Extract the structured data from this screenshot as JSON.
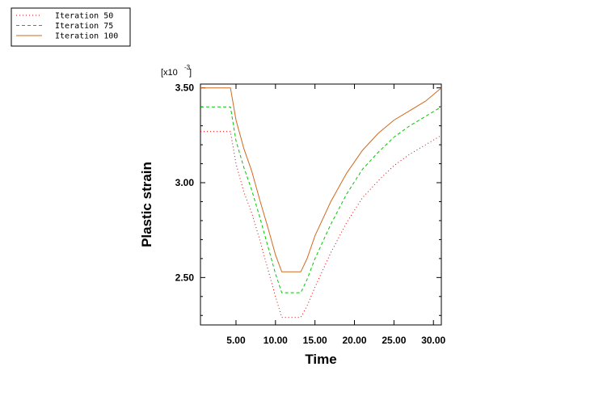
{
  "chart_data": {
    "type": "line",
    "title": "",
    "xlabel": "Time",
    "ylabel": "Plastic strain",
    "y_scale_label": "[x10",
    "y_scale_exponent": "-3",
    "y_scale_close": "]",
    "xlim": [
      0.5,
      31.0
    ],
    "ylim": [
      2.25,
      3.52
    ],
    "xticks": [
      5,
      10,
      15,
      20,
      25,
      30
    ],
    "xtick_labels": [
      "5.00",
      "10.00",
      "15.00",
      "20.00",
      "25.00",
      "30.00"
    ],
    "yticks": [
      2.5,
      3.0,
      3.5
    ],
    "ytick_labels": [
      "2.50",
      "3.00",
      "3.50"
    ],
    "grid": false,
    "legend_position": "top-left",
    "series": [
      {
        "name": "Iteration 50",
        "color": "#e00000",
        "dash": "1,3",
        "x": [
          0.5,
          4.3,
          5.0,
          6.0,
          7.0,
          8.0,
          9.0,
          10.0,
          10.8,
          13.2,
          14.0,
          15.0,
          17.0,
          19.0,
          21.0,
          23.0,
          25.0,
          27.0,
          29.0,
          31.0
        ],
        "y": [
          3.27,
          3.27,
          3.1,
          2.95,
          2.84,
          2.7,
          2.55,
          2.4,
          2.29,
          2.29,
          2.35,
          2.45,
          2.63,
          2.79,
          2.92,
          3.01,
          3.09,
          3.15,
          3.2,
          3.25
        ]
      },
      {
        "name": "Iteration 75",
        "color": "#00c800",
        "dash": "4,3",
        "x": [
          0.5,
          4.3,
          5.0,
          6.0,
          7.0,
          8.0,
          9.0,
          10.0,
          10.8,
          13.2,
          14.0,
          15.0,
          17.0,
          19.0,
          21.0,
          23.0,
          25.0,
          27.0,
          29.0,
          31.0
        ],
        "y": [
          3.4,
          3.4,
          3.22,
          3.08,
          2.96,
          2.82,
          2.67,
          2.52,
          2.42,
          2.42,
          2.49,
          2.6,
          2.78,
          2.94,
          3.07,
          3.16,
          3.24,
          3.3,
          3.35,
          3.4
        ]
      },
      {
        "name": "Iteration 100",
        "color": "#d2691e",
        "dash": "",
        "x": [
          0.5,
          4.3,
          5.0,
          6.0,
          7.0,
          8.0,
          9.0,
          10.0,
          10.8,
          13.2,
          14.0,
          15.0,
          17.0,
          19.0,
          21.0,
          23.0,
          25.0,
          27.0,
          29.0,
          31.0
        ],
        "y": [
          3.5,
          3.5,
          3.33,
          3.18,
          3.06,
          2.91,
          2.77,
          2.62,
          2.53,
          2.53,
          2.6,
          2.72,
          2.9,
          3.05,
          3.17,
          3.26,
          3.33,
          3.38,
          3.43,
          3.5
        ]
      }
    ]
  }
}
